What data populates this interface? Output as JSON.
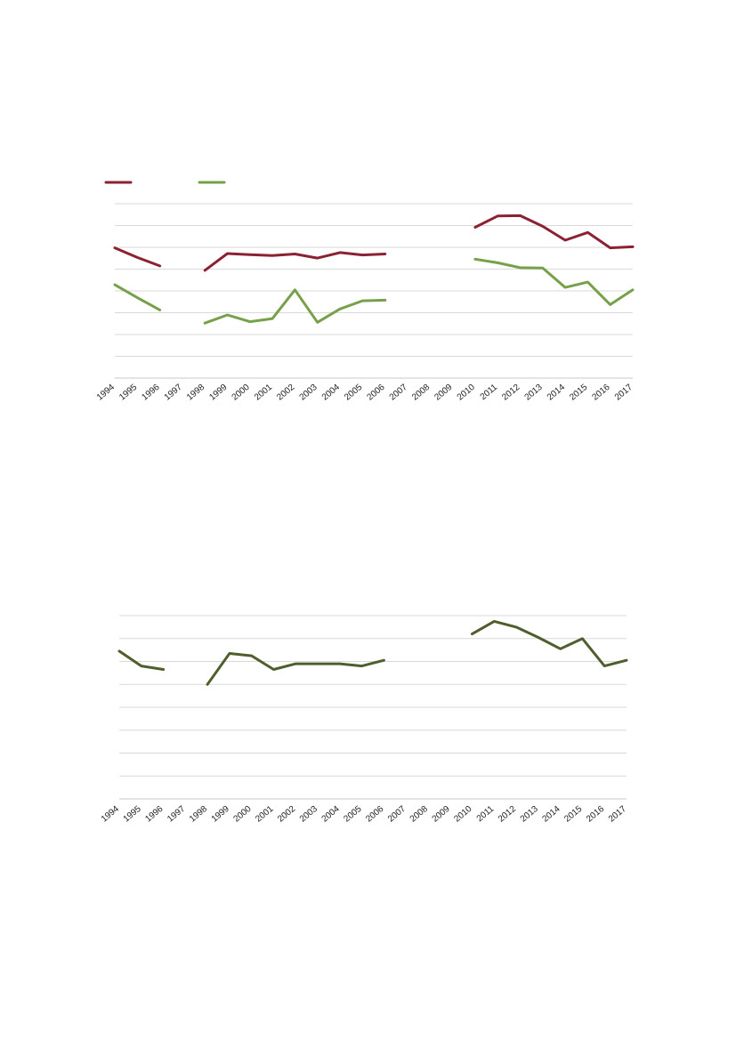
{
  "chart_data": [
    {
      "type": "line",
      "categories": [
        "1994",
        "1995",
        "1996",
        "1997",
        "1998",
        "1999",
        "2000",
        "2001",
        "2002",
        "2003",
        "2004",
        "2005",
        "2006",
        "2007",
        "2008",
        "2009",
        "2010",
        "2011",
        "2012",
        "2013",
        "2014",
        "2015",
        "2016",
        "2017"
      ],
      "series": [
        {
          "color": "#8b2232",
          "values": [
            58.5,
            53.8,
            49.7,
            null,
            47.5,
            55.7,
            55.2,
            54.7,
            55.5,
            53.5,
            56.2,
            55.0,
            55.5,
            null,
            null,
            null,
            68.5,
            74.0,
            74.2,
            69.0,
            62.2,
            66.0,
            58.5,
            59.0
          ]
        },
        {
          "color": "#76a04a",
          "values": [
            40.5,
            34.2,
            28.2,
            null,
            21.8,
            25.8,
            22.5,
            24.0,
            38.0,
            22.2,
            28.7,
            32.7,
            33.0,
            null,
            null,
            null,
            53.0,
            51.2,
            48.8,
            48.7,
            39.2,
            41.8,
            30.8,
            38.0
          ]
        }
      ],
      "ylim": [
        -5,
        80
      ],
      "gridlines": 8,
      "legend_position": "top-left",
      "grid": true
    },
    {
      "type": "line",
      "categories": [
        "1994",
        "1995",
        "1996",
        "1997",
        "1998",
        "1999",
        "2000",
        "2001",
        "2002",
        "2003",
        "2004",
        "2005",
        "2006",
        "2007",
        "2008",
        "2009",
        "2010",
        "2011",
        "2012",
        "2013",
        "2014",
        "2015",
        "2016",
        "2017"
      ],
      "series": [
        {
          "color": "#4f5e2d",
          "values": [
            64.5,
            58.0,
            56.5,
            null,
            50.0,
            63.5,
            62.5,
            56.5,
            59.0,
            59.0,
            59.0,
            58.0,
            60.5,
            null,
            null,
            null,
            72.0,
            77.5,
            75.0,
            70.5,
            65.5,
            70.0,
            58.0,
            60.5
          ]
        }
      ],
      "ylim": [
        0,
        80
      ],
      "gridlines": 8,
      "grid": true
    }
  ]
}
